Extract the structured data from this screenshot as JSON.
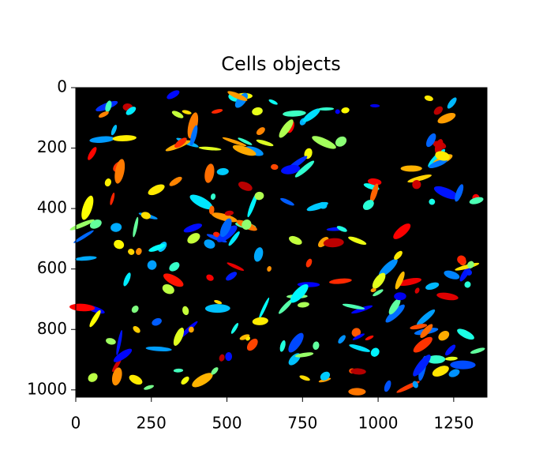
{
  "chart_data": {
    "type": "image",
    "title": "Cells objects",
    "xlim": [
      0,
      1360
    ],
    "ylim": [
      1024,
      0
    ],
    "xticks": [
      0,
      250,
      500,
      750,
      1000,
      1250
    ],
    "yticks": [
      0,
      200,
      400,
      600,
      800,
      1000
    ],
    "colormap": "jet",
    "background": "#000000"
  }
}
